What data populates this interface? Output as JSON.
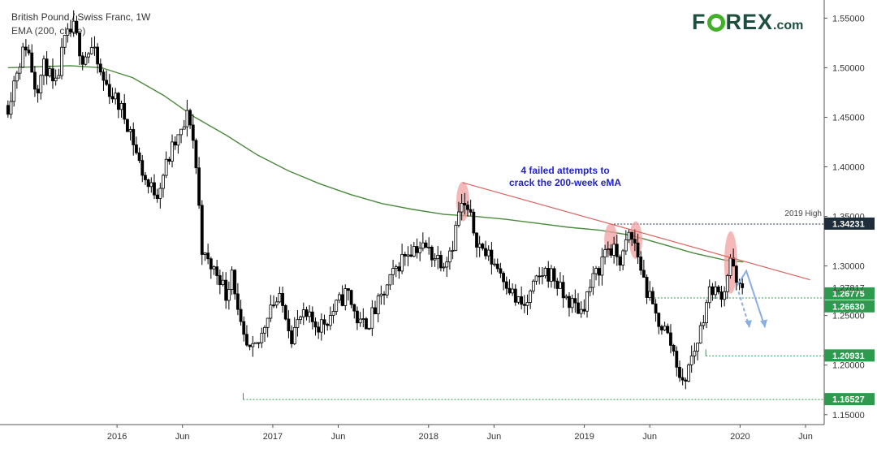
{
  "header": {
    "title": "British Pound / Swiss Franc, 1W",
    "subtitle": "EMA (200, close)"
  },
  "logo": {
    "part1": "F",
    "part2": "REX",
    "part3": ".com"
  },
  "colors": {
    "up_candle": "#ffffff",
    "down_candle": "#000000",
    "ema": "#4a8a3c",
    "trendline": "#d9645f",
    "support_line": "#2e9a4e",
    "level_badge": "#2e9a4e",
    "resistance_badge": "#1f2d3a",
    "annotation": "#2222cc",
    "projection": "#8aaee0",
    "highlight": "#f2a0a0"
  },
  "chart_data": {
    "type": "candlestick",
    "title": "British Pound / Swiss Franc, 1W",
    "indicator": "EMA (200, close)",
    "ylim": [
      1.14,
      1.565
    ],
    "x_ticks": [
      "2016",
      "Jun",
      "2017",
      "Jun",
      "2018",
      "Jun",
      "2019",
      "Jun",
      "2020",
      "Jun"
    ],
    "y_ticks": [
      "1.55000",
      "1.50000",
      "1.45000",
      "1.40000",
      "1.35000",
      "1.30000",
      "1.25000",
      "1.20000",
      "1.15000"
    ],
    "last_price": "1.27817",
    "levels": [
      {
        "label": "1.34231",
        "value": 1.34231,
        "kind": "resistance",
        "note": "2019 High"
      },
      {
        "label": "1.26775",
        "value": 1.26775,
        "kind": "support"
      },
      {
        "label": "1.26630",
        "value": 1.2663,
        "kind": "support"
      },
      {
        "label": "1.20931",
        "value": 1.20931,
        "kind": "support"
      },
      {
        "label": "1.16527",
        "value": 1.16527,
        "kind": "support"
      }
    ],
    "annotation": "4 failed attempts to\ncrack the 200-week eMA",
    "close_path": [
      [
        2015.3,
        1.462
      ],
      [
        2015.36,
        1.5
      ],
      [
        2015.42,
        1.525
      ],
      [
        2015.48,
        1.478
      ],
      [
        2015.54,
        1.505
      ],
      [
        2015.6,
        1.475
      ],
      [
        2015.66,
        1.525
      ],
      [
        2015.72,
        1.54
      ],
      [
        2015.78,
        1.51
      ],
      [
        2015.84,
        1.52
      ],
      [
        2015.9,
        1.49
      ],
      [
        2015.96,
        1.475
      ],
      [
        2016.02,
        1.46
      ],
      [
        2016.08,
        1.44
      ],
      [
        2016.14,
        1.405
      ],
      [
        2016.2,
        1.38
      ],
      [
        2016.26,
        1.375
      ],
      [
        2016.3,
        1.395
      ],
      [
        2016.36,
        1.42
      ],
      [
        2016.42,
        1.435
      ],
      [
        2016.46,
        1.456
      ],
      [
        2016.5,
        1.415
      ],
      [
        2016.55,
        1.31
      ],
      [
        2016.6,
        1.3
      ],
      [
        2016.66,
        1.29
      ],
      [
        2016.7,
        1.27
      ],
      [
        2016.74,
        1.3
      ],
      [
        2016.78,
        1.245
      ],
      [
        2016.82,
        1.22
      ],
      [
        2016.86,
        1.21
      ],
      [
        2016.92,
        1.225
      ],
      [
        2016.98,
        1.262
      ],
      [
        2017.04,
        1.265
      ],
      [
        2017.08,
        1.255
      ],
      [
        2017.12,
        1.23
      ],
      [
        2017.18,
        1.248
      ],
      [
        2017.24,
        1.245
      ],
      [
        2017.3,
        1.24
      ],
      [
        2017.36,
        1.248
      ],
      [
        2017.42,
        1.262
      ],
      [
        2017.48,
        1.275
      ],
      [
        2017.52,
        1.255
      ],
      [
        2017.56,
        1.24
      ],
      [
        2017.62,
        1.245
      ],
      [
        2017.68,
        1.262
      ],
      [
        2017.74,
        1.28
      ],
      [
        2017.8,
        1.3
      ],
      [
        2017.86,
        1.315
      ],
      [
        2017.92,
        1.32
      ],
      [
        2017.98,
        1.318
      ],
      [
        2018.04,
        1.31
      ],
      [
        2018.1,
        1.305
      ],
      [
        2018.16,
        1.325
      ],
      [
        2018.2,
        1.36
      ],
      [
        2018.24,
        1.358
      ],
      [
        2018.28,
        1.342
      ],
      [
        2018.32,
        1.322
      ],
      [
        2018.38,
        1.31
      ],
      [
        2018.44,
        1.3
      ],
      [
        2018.5,
        1.285
      ],
      [
        2018.56,
        1.265
      ],
      [
        2018.62,
        1.258
      ],
      [
        2018.68,
        1.28
      ],
      [
        2018.74,
        1.295
      ],
      [
        2018.8,
        1.29
      ],
      [
        2018.86,
        1.27
      ],
      [
        2018.92,
        1.262
      ],
      [
        2018.98,
        1.255
      ],
      [
        2019.04,
        1.28
      ],
      [
        2019.1,
        1.3
      ],
      [
        2019.14,
        1.32
      ],
      [
        2019.2,
        1.312
      ],
      [
        2019.24,
        1.305
      ],
      [
        2019.28,
        1.33
      ],
      [
        2019.32,
        1.325
      ],
      [
        2019.36,
        1.3
      ],
      [
        2019.4,
        1.275
      ],
      [
        2019.46,
        1.248
      ],
      [
        2019.52,
        1.235
      ],
      [
        2019.56,
        1.22
      ],
      [
        2019.6,
        1.2
      ],
      [
        2019.63,
        1.178
      ],
      [
        2019.66,
        1.195
      ],
      [
        2019.7,
        1.212
      ],
      [
        2019.74,
        1.232
      ],
      [
        2019.78,
        1.262
      ],
      [
        2019.82,
        1.28
      ],
      [
        2019.86,
        1.27
      ],
      [
        2019.9,
        1.278
      ],
      [
        2019.94,
        1.31
      ],
      [
        2019.97,
        1.282
      ],
      [
        2020.0,
        1.275
      ],
      [
        2020.02,
        1.278
      ]
    ],
    "ema_path": [
      [
        2015.3,
        1.5
      ],
      [
        2015.7,
        1.502
      ],
      [
        2015.9,
        1.5
      ],
      [
        2016.1,
        1.49
      ],
      [
        2016.3,
        1.472
      ],
      [
        2016.5,
        1.45
      ],
      [
        2016.7,
        1.432
      ],
      [
        2016.9,
        1.412
      ],
      [
        2017.1,
        1.396
      ],
      [
        2017.3,
        1.383
      ],
      [
        2017.5,
        1.372
      ],
      [
        2017.7,
        1.363
      ],
      [
        2017.9,
        1.357
      ],
      [
        2018.1,
        1.352
      ],
      [
        2018.3,
        1.35
      ],
      [
        2018.5,
        1.347
      ],
      [
        2018.7,
        1.343
      ],
      [
        2018.9,
        1.339
      ],
      [
        2019.1,
        1.336
      ],
      [
        2019.3,
        1.331
      ],
      [
        2019.5,
        1.322
      ],
      [
        2019.7,
        1.313
      ],
      [
        2019.9,
        1.306
      ],
      [
        2020.02,
        1.304
      ]
    ],
    "trendline": {
      "from": [
        2018.22,
        1.384
      ],
      "to": [
        2020.45,
        1.286
      ]
    },
    "highlights": [
      {
        "x": 2018.22,
        "y_top": 1.385,
        "y_bottom": 1.345
      },
      {
        "x": 2019.17,
        "y_top": 1.343,
        "y_bottom": 1.31
      },
      {
        "x": 2019.33,
        "y_top": 1.345,
        "y_bottom": 1.307
      },
      {
        "x": 2019.94,
        "y_top": 1.335,
        "y_bottom": 1.272
      }
    ],
    "projection_solid": [
      [
        2019.98,
        1.28
      ],
      [
        2020.04,
        1.295
      ],
      [
        2020.16,
        1.238
      ]
    ],
    "projection_dashed": [
      [
        2019.99,
        1.274
      ],
      [
        2020.06,
        1.238
      ]
    ]
  }
}
